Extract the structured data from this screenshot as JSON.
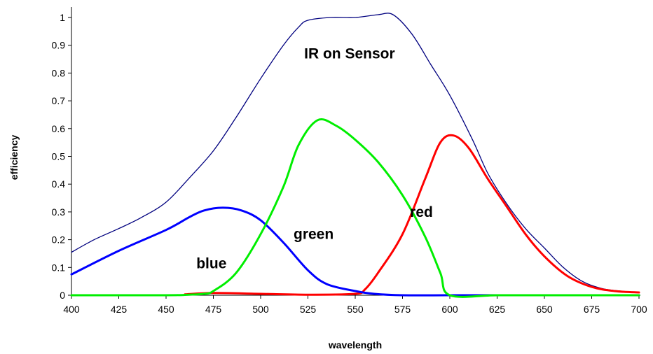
{
  "chart_data": {
    "type": "line",
    "title": "",
    "xlabel": "wavelength",
    "ylabel": "efficiency",
    "xlim": [
      400,
      700
    ],
    "ylim": [
      0,
      1
    ],
    "grid": false,
    "legend": "none",
    "x_ticks": [
      "400",
      "425",
      "450",
      "475",
      "500",
      "525",
      "550",
      "575",
      "600",
      "625",
      "650",
      "675",
      "700"
    ],
    "y_ticks": [
      "0",
      "0.1",
      "0.2",
      "0.3",
      "0.4",
      "0.5",
      "0.6",
      "0.7",
      "0.8",
      "0.9",
      "1"
    ],
    "series": [
      {
        "name": "IR on Sensor",
        "color": "#00007f",
        "width": 1.3,
        "points": [
          [
            400,
            0.155
          ],
          [
            412,
            0.2
          ],
          [
            425,
            0.24
          ],
          [
            437,
            0.28
          ],
          [
            450,
            0.335
          ],
          [
            462,
            0.42
          ],
          [
            475,
            0.52
          ],
          [
            487,
            0.64
          ],
          [
            500,
            0.78
          ],
          [
            512,
            0.9
          ],
          [
            520,
            0.965
          ],
          [
            525,
            0.99
          ],
          [
            537,
            1.0
          ],
          [
            550,
            1.0
          ],
          [
            562,
            1.01
          ],
          [
            570,
            1.01
          ],
          [
            580,
            0.94
          ],
          [
            590,
            0.83
          ],
          [
            600,
            0.72
          ],
          [
            612,
            0.56
          ],
          [
            620,
            0.44
          ],
          [
            630,
            0.33
          ],
          [
            640,
            0.24
          ],
          [
            650,
            0.17
          ],
          [
            660,
            0.1
          ],
          [
            670,
            0.05
          ],
          [
            680,
            0.025
          ],
          [
            690,
            0.015
          ],
          [
            700,
            0.01
          ]
        ]
      },
      {
        "name": "blue",
        "color": "#0000ff",
        "width": 3,
        "points": [
          [
            400,
            0.075
          ],
          [
            425,
            0.16
          ],
          [
            450,
            0.235
          ],
          [
            462,
            0.28
          ],
          [
            470,
            0.305
          ],
          [
            480,
            0.315
          ],
          [
            490,
            0.305
          ],
          [
            500,
            0.27
          ],
          [
            512,
            0.19
          ],
          [
            525,
            0.09
          ],
          [
            535,
            0.04
          ],
          [
            550,
            0.015
          ],
          [
            560,
            0.005
          ],
          [
            575,
            0.0
          ],
          [
            600,
            0.0
          ],
          [
            625,
            0.0
          ],
          [
            650,
            0.0
          ],
          [
            675,
            0.0
          ],
          [
            700,
            0.0
          ]
        ]
      },
      {
        "name": "green",
        "color": "#00ee00",
        "width": 3,
        "points": [
          [
            400,
            0.0
          ],
          [
            450,
            0.0
          ],
          [
            462,
            0.002
          ],
          [
            470,
            0.005
          ],
          [
            475,
            0.015
          ],
          [
            487,
            0.08
          ],
          [
            500,
            0.22
          ],
          [
            512,
            0.39
          ],
          [
            520,
            0.54
          ],
          [
            530,
            0.63
          ],
          [
            540,
            0.61
          ],
          [
            550,
            0.56
          ],
          [
            562,
            0.48
          ],
          [
            575,
            0.36
          ],
          [
            587,
            0.21
          ],
          [
            595,
            0.08
          ],
          [
            600,
            0.0
          ],
          [
            625,
            0.0
          ],
          [
            650,
            0.0
          ],
          [
            675,
            0.0
          ],
          [
            700,
            0.0
          ]
        ]
      },
      {
        "name": "red",
        "color": "#ff0000",
        "width": 3,
        "points": [
          [
            460,
            0.003
          ],
          [
            475,
            0.008
          ],
          [
            500,
            0.005
          ],
          [
            525,
            0.002
          ],
          [
            550,
            0.005
          ],
          [
            555,
            0.02
          ],
          [
            562,
            0.08
          ],
          [
            575,
            0.22
          ],
          [
            587,
            0.42
          ],
          [
            595,
            0.55
          ],
          [
            602,
            0.575
          ],
          [
            610,
            0.53
          ],
          [
            620,
            0.42
          ],
          [
            630,
            0.32
          ],
          [
            640,
            0.22
          ],
          [
            650,
            0.14
          ],
          [
            662,
            0.07
          ],
          [
            675,
            0.03
          ],
          [
            687,
            0.015
          ],
          [
            700,
            0.01
          ]
        ]
      }
    ],
    "annotations": [
      {
        "text": "IR on Sensor",
        "x": 547,
        "y": 0.87
      },
      {
        "text": "blue",
        "x": 474,
        "y": 0.115
      },
      {
        "text": "green",
        "x": 528,
        "y": 0.22
      },
      {
        "text": "red",
        "x": 585,
        "y": 0.3
      }
    ]
  }
}
